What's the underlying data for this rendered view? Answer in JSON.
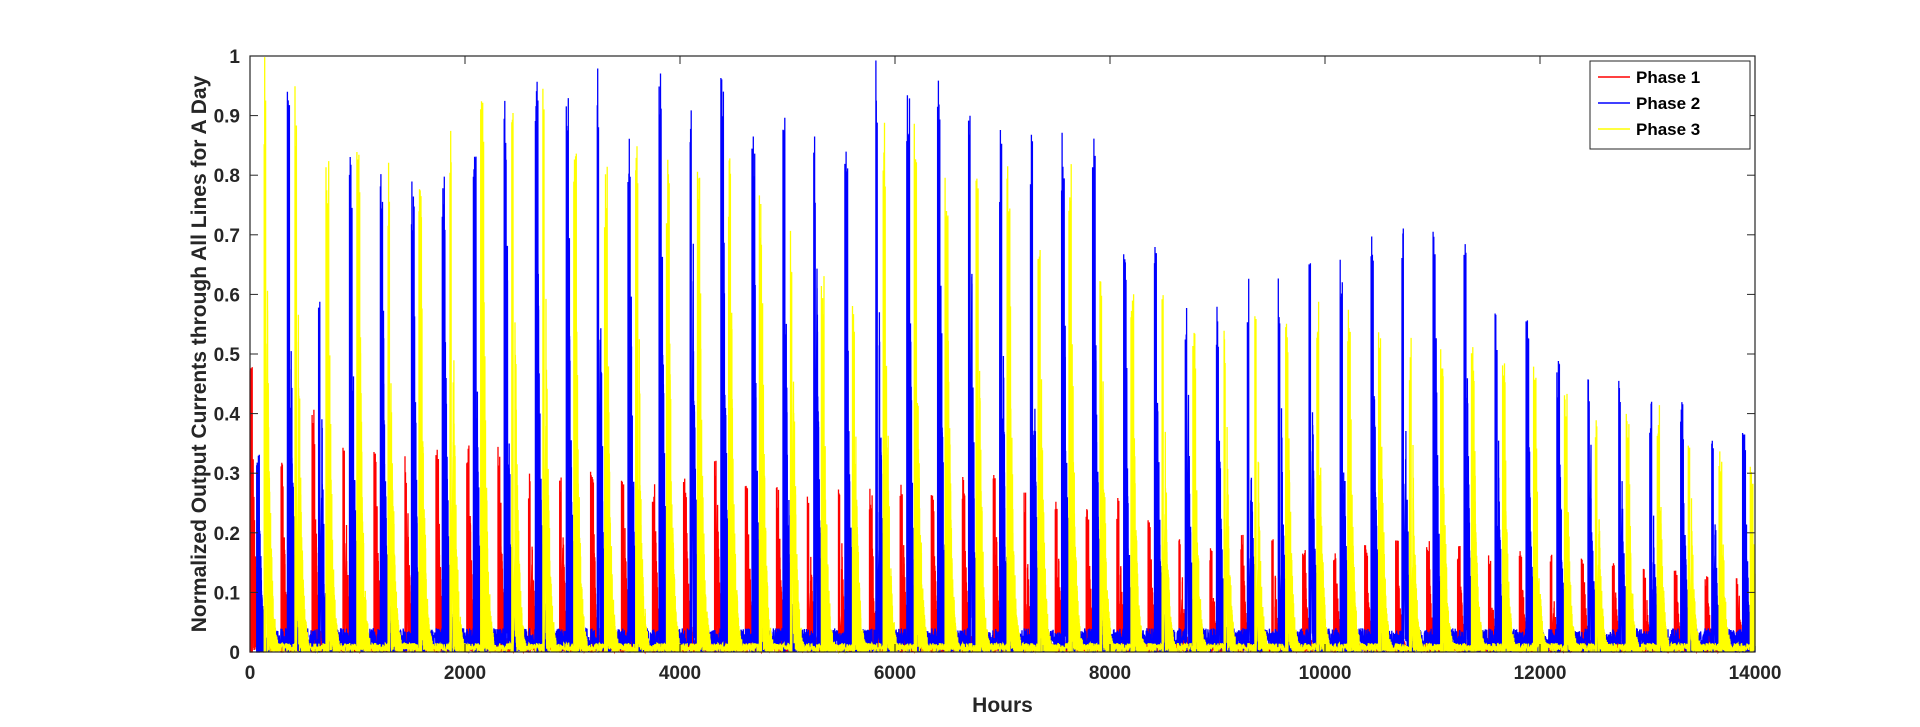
{
  "chart_data": {
    "type": "line",
    "title": "",
    "xlabel": "Hours",
    "ylabel": "Normalized Output  Currents through All Lines for A Day",
    "xlim": [
      0,
      14000
    ],
    "ylim": [
      0,
      1
    ],
    "xticks": [
      0,
      2000,
      4000,
      6000,
      8000,
      10000,
      12000,
      14000
    ],
    "xtick_labels": [
      "0",
      "2000",
      "4000",
      "6000",
      "8000",
      "10000",
      "12000",
      "14000"
    ],
    "yticks": [
      0,
      0.1,
      0.2,
      0.3,
      0.4,
      0.5,
      0.6,
      0.7,
      0.8,
      0.9,
      1
    ],
    "ytick_labels": [
      "0",
      "0.1",
      "0.2",
      "0.3",
      "0.4",
      "0.5",
      "0.6",
      "0.7",
      "0.8",
      "0.9",
      "1"
    ],
    "grid": false,
    "legend_position": "top-right",
    "series": [
      {
        "name": "Phase 1",
        "color": "#ff0000",
        "cycle_hours": 288,
        "burst_offset_hours": 0,
        "x": [
          0,
          288,
          576,
          864,
          1152,
          1440,
          1728,
          2016,
          2304,
          2592,
          2880,
          3168,
          3456,
          3744,
          4032,
          4320,
          4608,
          4896,
          5184,
          5472,
          5760,
          6048,
          6336,
          6624,
          6912,
          7200,
          7488,
          7776,
          8064,
          8352,
          8640,
          8928,
          9216,
          9504,
          9792,
          10080,
          10368,
          10656,
          10944,
          11232,
          11520,
          11808,
          12096,
          12384,
          12672,
          12960,
          13248,
          13536,
          13824
        ],
        "peak_values": [
          0.5,
          0.32,
          0.41,
          0.36,
          0.35,
          0.33,
          0.34,
          0.35,
          0.35,
          0.3,
          0.31,
          0.31,
          0.31,
          0.29,
          0.3,
          0.33,
          0.32,
          0.28,
          0.28,
          0.28,
          0.28,
          0.29,
          0.27,
          0.3,
          0.3,
          0.27,
          0.26,
          0.25,
          0.26,
          0.23,
          0.2,
          0.18,
          0.2,
          0.2,
          0.18,
          0.17,
          0.18,
          0.19,
          0.19,
          0.18,
          0.17,
          0.17,
          0.17,
          0.16,
          0.15,
          0.14,
          0.14,
          0.13,
          0.13
        ]
      },
      {
        "name": "Phase 2",
        "color": "#0000ff",
        "cycle_hours": 288,
        "burst_offset_hours": 60,
        "x": [
          0,
          288,
          576,
          864,
          1152,
          1440,
          1728,
          2016,
          2304,
          2592,
          2880,
          3168,
          3456,
          3744,
          4032,
          4320,
          4608,
          4896,
          5184,
          5472,
          5760,
          6048,
          6336,
          6624,
          6912,
          7200,
          7488,
          7776,
          8064,
          8352,
          8640,
          8928,
          9216,
          9504,
          9792,
          10080,
          10368,
          10656,
          10944,
          11232,
          11520,
          11808,
          12096,
          12384,
          12672,
          12960,
          13248,
          13536,
          13824
        ],
        "peak_values": [
          0.35,
          1.0,
          0.61,
          0.86,
          0.82,
          0.83,
          0.82,
          0.85,
          0.94,
          0.98,
          1.0,
          1.0,
          0.9,
          1.0,
          1.0,
          1.0,
          0.89,
          0.94,
          0.88,
          0.87,
          1.0,
          1.0,
          1.0,
          0.95,
          0.88,
          0.9,
          0.88,
          0.88,
          0.71,
          0.69,
          0.59,
          0.58,
          0.63,
          0.64,
          0.66,
          0.69,
          0.7,
          0.74,
          0.72,
          0.69,
          0.57,
          0.57,
          0.5,
          0.48,
          0.48,
          0.42,
          0.42,
          0.38,
          0.38
        ]
      },
      {
        "name": "Phase 3",
        "color": "#ffff00",
        "cycle_hours": 288,
        "burst_offset_hours": 130,
        "x": [
          0,
          288,
          576,
          864,
          1152,
          1440,
          1728,
          2016,
          2304,
          2592,
          2880,
          3168,
          3456,
          3744,
          4032,
          4320,
          4608,
          4896,
          5184,
          5472,
          5760,
          6048,
          6336,
          6624,
          6912,
          7200,
          7488,
          7776,
          8064,
          8352,
          8640,
          8928,
          9216,
          9504,
          9792,
          10080,
          10368,
          10656,
          10944,
          11232,
          11520,
          11808,
          12096,
          12384,
          12672,
          12960,
          13248,
          13536,
          13824
        ],
        "peak_values": [
          1.0,
          0.97,
          0.86,
          0.84,
          0.83,
          0.8,
          0.94,
          0.93,
          0.98,
          0.97,
          0.85,
          0.82,
          0.85,
          0.83,
          0.86,
          0.84,
          0.8,
          0.72,
          0.64,
          0.6,
          0.9,
          0.9,
          0.82,
          0.8,
          0.85,
          0.73,
          0.84,
          0.65,
          0.62,
          0.6,
          0.54,
          0.55,
          0.58,
          0.56,
          0.6,
          0.58,
          0.55,
          0.53,
          0.52,
          0.53,
          0.5,
          0.48,
          0.44,
          0.42,
          0.4,
          0.42,
          0.38,
          0.35,
          0.32
        ]
      }
    ]
  }
}
